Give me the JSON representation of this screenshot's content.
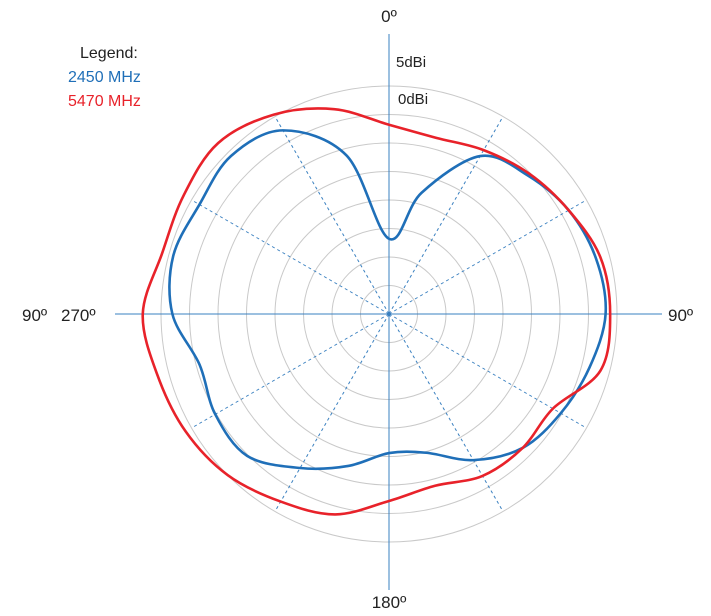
{
  "chart_data": {
    "type": "polar-line",
    "angle_labels": {
      "top": "0º",
      "right": "90º",
      "bottom": "180º",
      "left_outer": "90º",
      "left_inner": "270º"
    },
    "ring_labels": [
      {
        "text": "5dBi"
      },
      {
        "text": "0dBi"
      }
    ],
    "legend": {
      "title": "Legend:",
      "position": "top-left"
    },
    "grid": true,
    "rings": 8,
    "spokes_deg": [
      0,
      30,
      60,
      90,
      120,
      150,
      180,
      210,
      240,
      270,
      300,
      330
    ],
    "series": [
      {
        "name": "2450 MHz",
        "color": "#1f6fb8",
        "radial_units": "fraction of outer grid radius",
        "angles_deg": [
          0,
          15,
          30,
          45,
          60,
          75,
          90,
          105,
          120,
          135,
          150,
          165,
          180,
          195,
          210,
          225,
          240,
          255,
          270,
          285,
          300,
          315,
          330,
          345
        ],
        "radius": [
          0.33,
          0.55,
          0.8,
          0.86,
          0.91,
          0.94,
          0.95,
          0.91,
          0.87,
          0.83,
          0.74,
          0.63,
          0.61,
          0.69,
          0.78,
          0.88,
          0.88,
          0.86,
          0.95,
          0.98,
          0.96,
          0.98,
          0.93,
          0.72
        ]
      },
      {
        "name": "5470 MHz",
        "color": "#e8222a",
        "radial_units": "fraction of outer grid radius",
        "angles_deg": [
          0,
          15,
          30,
          45,
          60,
          75,
          90,
          105,
          120,
          135,
          150,
          165,
          180,
          195,
          210,
          225,
          240,
          255,
          270,
          285,
          300,
          315,
          330,
          345
        ],
        "radius": [
          0.83,
          0.8,
          0.83,
          0.87,
          0.91,
          0.96,
          0.97,
          0.96,
          0.83,
          0.83,
          0.82,
          0.78,
          0.82,
          0.91,
          0.95,
          1.0,
          1.03,
          1.05,
          1.08,
          1.03,
          1.04,
          1.06,
          1.01,
          0.93
        ]
      }
    ]
  }
}
